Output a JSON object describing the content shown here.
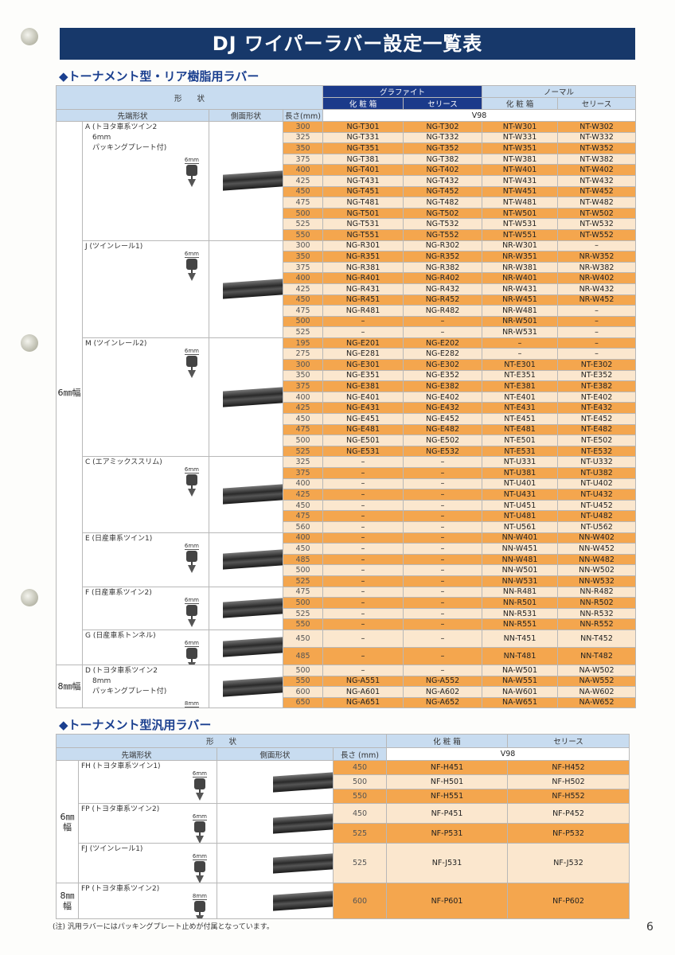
{
  "title": "DJ ワイパーラバー設定一覧表",
  "table1": {
    "heading": "◆トーナメント型・リア樹脂用ラバー",
    "header": {
      "shape": "形　　状",
      "graphite": "グラファイト",
      "normal": "ノーマル",
      "box1": "化 粧 箱",
      "series1": "セリース",
      "box2": "化 粧 箱",
      "series2": "セリース",
      "tip": "先端形状",
      "side": "側面形状",
      "length": "長さ(mm)",
      "v98": "V98"
    },
    "groups": [
      {
        "label": "6㎜幅",
        "sections": [
          {
            "tip_lines": [
              "A (トヨタ車系ツイン2",
              "　6mm",
              "　パッキングプレート付)"
            ],
            "tip_width": "6mm",
            "rows": [
              [
                "300",
                "NG-T301",
                "NG-T302",
                "NT-W301",
                "NT-W302"
              ],
              [
                "325",
                "NG-T331",
                "NG-T332",
                "NT-W331",
                "NT-W332"
              ],
              [
                "350",
                "NG-T351",
                "NG-T352",
                "NT-W351",
                "NT-W352"
              ],
              [
                "375",
                "NG-T381",
                "NG-T382",
                "NT-W381",
                "NT-W382"
              ],
              [
                "400",
                "NG-T401",
                "NG-T402",
                "NT-W401",
                "NT-W402"
              ],
              [
                "425",
                "NG-T431",
                "NG-T432",
                "NT-W431",
                "NT-W432"
              ],
              [
                "450",
                "NG-T451",
                "NG-T452",
                "NT-W451",
                "NT-W452"
              ],
              [
                "475",
                "NG-T481",
                "NG-T482",
                "NT-W481",
                "NT-W482"
              ],
              [
                "500",
                "NG-T501",
                "NG-T502",
                "NT-W501",
                "NT-W502"
              ],
              [
                "525",
                "NG-T531",
                "NG-T532",
                "NT-W531",
                "NT-W532"
              ],
              [
                "550",
                "NG-T551",
                "NG-T552",
                "NT-W551",
                "NT-W552"
              ]
            ]
          },
          {
            "tip_lines": [
              "J (ツインレール1)"
            ],
            "tip_width": "6mm",
            "rows": [
              [
                "300",
                "NG-R301",
                "NG-R302",
                "NR-W301",
                "–"
              ],
              [
                "350",
                "NG-R351",
                "NG-R352",
                "NR-W351",
                "NR-W352"
              ],
              [
                "375",
                "NG-R381",
                "NG-R382",
                "NR-W381",
                "NR-W382"
              ],
              [
                "400",
                "NG-R401",
                "NG-R402",
                "NR-W401",
                "NR-W402"
              ],
              [
                "425",
                "NG-R431",
                "NG-R432",
                "NR-W431",
                "NR-W432"
              ],
              [
                "450",
                "NG-R451",
                "NG-R452",
                "NR-W451",
                "NR-W452"
              ],
              [
                "475",
                "NG-R481",
                "NG-R482",
                "NR-W481",
                "–"
              ],
              [
                "500",
                "–",
                "–",
                "NR-W501",
                "–"
              ],
              [
                "525",
                "–",
                "–",
                "NR-W531",
                "–"
              ]
            ]
          },
          {
            "tip_lines": [
              "M (ツインレール2)"
            ],
            "tip_width": "6mm",
            "rows": [
              [
                "195",
                "NG-E201",
                "NG-E202",
                "–",
                "–"
              ],
              [
                "275",
                "NG-E281",
                "NG-E282",
                "–",
                "–"
              ],
              [
                "300",
                "NG-E301",
                "NG-E302",
                "NT-E301",
                "NT-E302"
              ],
              [
                "350",
                "NG-E351",
                "NG-E352",
                "NT-E351",
                "NT-E352"
              ],
              [
                "375",
                "NG-E381",
                "NG-E382",
                "NT-E381",
                "NT-E382"
              ],
              [
                "400",
                "NG-E401",
                "NG-E402",
                "NT-E401",
                "NT-E402"
              ],
              [
                "425",
                "NG-E431",
                "NG-E432",
                "NT-E431",
                "NT-E432"
              ],
              [
                "450",
                "NG-E451",
                "NG-E452",
                "NT-E451",
                "NT-E452"
              ],
              [
                "475",
                "NG-E481",
                "NG-E482",
                "NT-E481",
                "NT-E482"
              ],
              [
                "500",
                "NG-E501",
                "NG-E502",
                "NT-E501",
                "NT-E502"
              ],
              [
                "525",
                "NG-E531",
                "NG-E532",
                "NT-E531",
                "NT-E532"
              ]
            ]
          },
          {
            "tip_lines": [
              "C (エアミックススリム)"
            ],
            "tip_width": "6mm",
            "rows": [
              [
                "325",
                "–",
                "–",
                "NT-U331",
                "NT-U332"
              ],
              [
                "375",
                "–",
                "–",
                "NT-U381",
                "NT-U382"
              ],
              [
                "400",
                "–",
                "–",
                "NT-U401",
                "NT-U402"
              ],
              [
                "425",
                "–",
                "–",
                "NT-U431",
                "NT-U432"
              ],
              [
                "450",
                "–",
                "–",
                "NT-U451",
                "NT-U452"
              ],
              [
                "475",
                "–",
                "–",
                "NT-U481",
                "NT-U482"
              ],
              [
                "560",
                "–",
                "–",
                "NT-U561",
                "NT-U562"
              ]
            ]
          },
          {
            "tip_lines": [
              "E (日産車系ツイン1)"
            ],
            "tip_width": "6mm",
            "rows": [
              [
                "400",
                "–",
                "–",
                "NN-W401",
                "NN-W402"
              ],
              [
                "450",
                "–",
                "–",
                "NN-W451",
                "NN-W452"
              ],
              [
                "485",
                "–",
                "–",
                "NN-W481",
                "NN-W482"
              ],
              [
                "500",
                "–",
                "–",
                "NN-W501",
                "NN-W502"
              ],
              [
                "525",
                "–",
                "–",
                "NN-W531",
                "NN-W532"
              ]
            ]
          },
          {
            "tip_lines": [
              "F (日産車系ツイン2)"
            ],
            "tip_width": "6mm",
            "rows": [
              [
                "475",
                "–",
                "–",
                "NN-R481",
                "NN-R482"
              ],
              [
                "500",
                "–",
                "–",
                "NN-R501",
                "NN-R502"
              ],
              [
                "525",
                "–",
                "–",
                "NN-R531",
                "NN-R532"
              ],
              [
                "550",
                "–",
                "–",
                "NN-R551",
                "NN-R552"
              ]
            ]
          },
          {
            "tip_lines": [
              "G (日産車系トンネル)"
            ],
            "tip_width": "6mm",
            "rows": [
              [
                "450",
                "–",
                "–",
                "NN-T451",
                "NN-T452"
              ],
              [
                "485",
                "–",
                "–",
                "NN-T481",
                "NN-T482"
              ]
            ]
          }
        ]
      },
      {
        "label": "8㎜幅",
        "sections": [
          {
            "tip_lines": [
              "D (トヨタ車系ツイン2",
              "　8mm",
              "　パッキングプレート付)"
            ],
            "tip_width": "8mm",
            "rows": [
              [
                "500",
                "–",
                "–",
                "NA-W501",
                "NA-W502"
              ],
              [
                "550",
                "NG-A551",
                "NG-A552",
                "NA-W551",
                "NA-W552"
              ],
              [
                "600",
                "NG-A601",
                "NG-A602",
                "NA-W601",
                "NA-W602"
              ],
              [
                "650",
                "NG-A651",
                "NG-A652",
                "NA-W651",
                "NA-W652"
              ]
            ]
          }
        ]
      }
    ]
  },
  "table2": {
    "heading": "◆トーナメント型汎用ラバー",
    "header": {
      "shape": "形　　状",
      "box": "化 粧 箱",
      "series": "セリース",
      "tip": "先端形状",
      "side": "側面形状",
      "length": "長さ (mm)",
      "v98": "V98"
    },
    "groups": [
      {
        "label": "6㎜幅",
        "sections": [
          {
            "tip_lines": [
              "FH (トヨタ車系ツイン1)"
            ],
            "tip_width": "6mm",
            "rows": [
              [
                "450",
                "NF-H451",
                "NF-H452"
              ],
              [
                "500",
                "NF-H501",
                "NF-H502"
              ],
              [
                "550",
                "NF-H551",
                "NF-H552"
              ]
            ]
          },
          {
            "tip_lines": [
              "FP (トヨタ車系ツイン2)"
            ],
            "tip_width": "6mm",
            "rows": [
              [
                "450",
                "NF-P451",
                "NF-P452"
              ],
              [
                "525",
                "NF-P531",
                "NF-P532"
              ]
            ]
          },
          {
            "tip_lines": [
              "FJ (ツインレール1)"
            ],
            "tip_width": "6mm",
            "rows": [
              [
                "525",
                "NF-J531",
                "NF-J532"
              ]
            ]
          }
        ]
      },
      {
        "label": "8㎜幅",
        "sections": [
          {
            "tip_lines": [
              "FP (トヨタ車系ツイン2)"
            ],
            "tip_width": "8mm",
            "rows": [
              [
                "600",
                "NF-P601",
                "NF-P602"
              ]
            ]
          }
        ]
      }
    ]
  },
  "note": "(注) 汎用ラバーにはパッキングプレート止めが付属となっています。",
  "page_number": "6",
  "colors": {
    "banner": "#17386a",
    "heading": "#1a3f8f",
    "graphite_header": "#1b3a8a",
    "row_orange": "#f4a64e",
    "row_cream": "#fbe7ce",
    "header_blue": "#c8dcf0"
  }
}
